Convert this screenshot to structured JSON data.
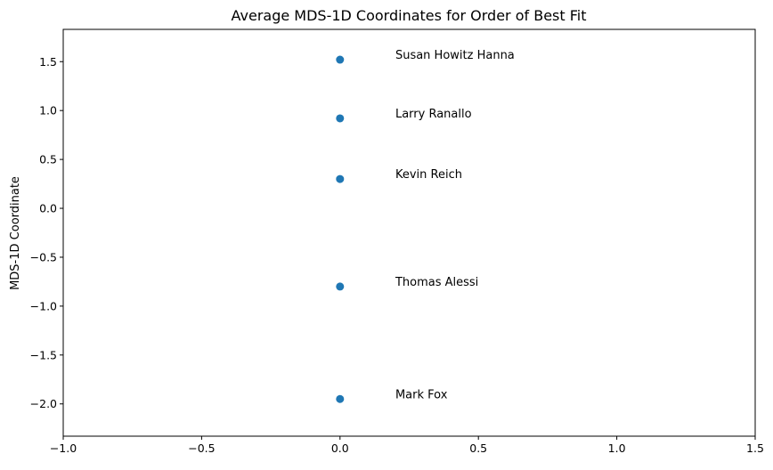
{
  "chart_data": {
    "type": "scatter",
    "title": "Average MDS-1D Coordinates for Order of Best Fit",
    "xlabel": "",
    "ylabel": "MDS-1D Coordinate",
    "xlim": [
      -1.0,
      1.5
    ],
    "ylim": [
      -2.33,
      1.83
    ],
    "grid": false,
    "marker_color": "#1f77b4",
    "x_ticks": [
      -1.0,
      -0.5,
      0.0,
      0.5,
      1.0,
      1.5
    ],
    "x_tick_labels": [
      "−1.0",
      "−0.5",
      "0.0",
      "0.5",
      "1.0",
      "1.5"
    ],
    "y_ticks": [
      1.5,
      1.0,
      0.5,
      0.0,
      -0.5,
      -1.0,
      -1.5,
      -2.0
    ],
    "y_tick_labels": [
      "1.5",
      "1.0",
      "0.5",
      "0.0",
      "−0.5",
      "−1.0",
      "−1.5",
      "−2.0"
    ],
    "points": [
      {
        "label": "Susan Howitz Hanna",
        "x": 0.0,
        "y": 1.52
      },
      {
        "label": "Larry Ranallo",
        "x": 0.0,
        "y": 0.92
      },
      {
        "label": "Kevin Reich",
        "x": 0.0,
        "y": 0.3
      },
      {
        "label": "Thomas Alessi",
        "x": 0.0,
        "y": -0.8
      },
      {
        "label": "Mark Fox",
        "x": 0.0,
        "y": -1.95
      }
    ]
  }
}
